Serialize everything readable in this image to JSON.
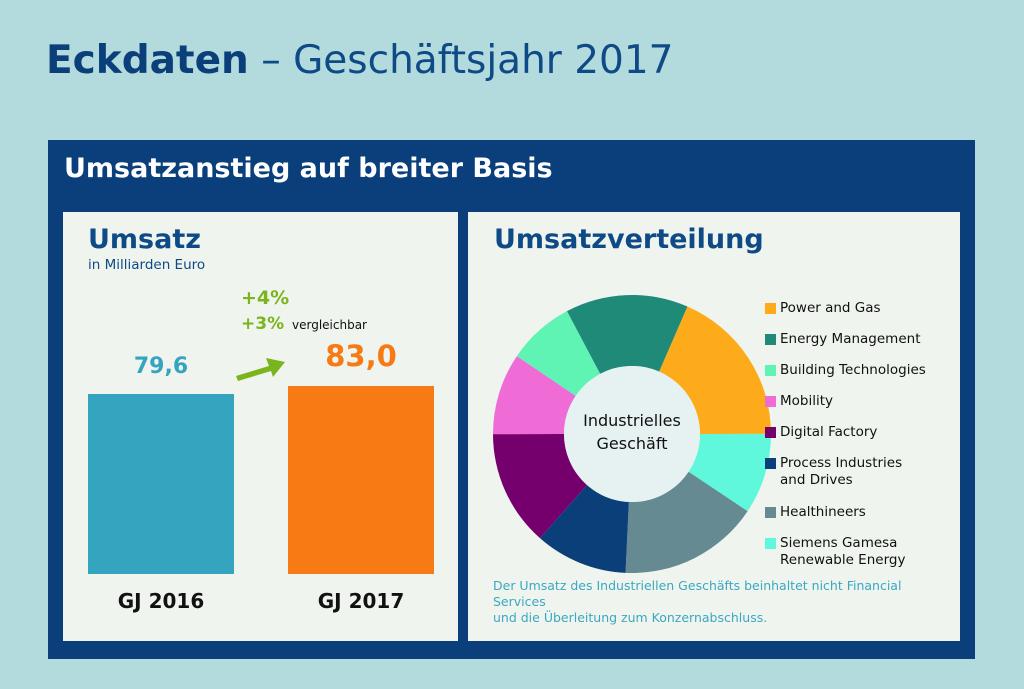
{
  "title": {
    "bold": "Eckdaten",
    "rest": " – Geschäftsjahr 2017"
  },
  "panel_title": "Umsatzanstieg auf breiter Basis",
  "chart_data": [
    {
      "type": "bar",
      "title": "Umsatz",
      "subtitle": "in Milliarden Euro",
      "categories": [
        "GJ 2016",
        "GJ 2017"
      ],
      "values": [
        79.6,
        83.0
      ],
      "value_labels": [
        "79,6",
        "83,0"
      ],
      "colors": [
        "#35a5bf",
        "#f77a14"
      ],
      "annotations": {
        "growth": "+4%",
        "comparable_growth": "+3%",
        "comparable_label": "vergleichbar"
      },
      "arrow_color": "#7ab51d"
    },
    {
      "type": "pie",
      "title": "Umsatzverteilung",
      "center_label": [
        "Industrielles",
        "Geschäft"
      ],
      "donut": true,
      "legend_position": "right",
      "slices": [
        {
          "name": "Power and Gas",
          "share": 18.5,
          "color": "#fdab1a"
        },
        {
          "name": "Siemens Gamesa Renewable Energy",
          "share": 9.4,
          "color": "#5ff8dc"
        },
        {
          "name": "Healthineers",
          "share": 16.4,
          "color": "#668a92"
        },
        {
          "name": "Process Industries and Drives",
          "share": 10.8,
          "color": "#0a3f7a"
        },
        {
          "name": "Digital Factory",
          "share": 13.5,
          "color": "#75006d"
        },
        {
          "name": "Mobility",
          "share": 9.5,
          "color": "#ef6cd6"
        },
        {
          "name": "Building Technologies",
          "share": 7.8,
          "color": "#60f4b4"
        },
        {
          "name": "Energy Management",
          "share": 14.3,
          "color": "#1f8a78"
        }
      ],
      "legend": [
        {
          "label": [
            "Power and Gas"
          ],
          "color": "#fdab1a"
        },
        {
          "label": [
            "Energy Management"
          ],
          "color": "#1f8a78"
        },
        {
          "label": [
            "Building Technologies"
          ],
          "color": "#60f4b4"
        },
        {
          "label": [
            "Mobility"
          ],
          "color": "#ef6cd6"
        },
        {
          "label": [
            "Digital Factory"
          ],
          "color": "#75006d"
        },
        {
          "label": [
            "Process Industries",
            "and Drives"
          ],
          "color": "#0a3f7a"
        },
        {
          "label": [
            "Healthineers"
          ],
          "color": "#668a92"
        },
        {
          "label": [
            "Siemens Gamesa",
            "Renewable Energy"
          ],
          "color": "#5ff8dc"
        }
      ],
      "note": [
        "Der Umsatz des Industriellen Geschäfts beinhaltet nicht Financial Services",
        "und die Überleitung zum Konzernabschluss."
      ]
    }
  ]
}
